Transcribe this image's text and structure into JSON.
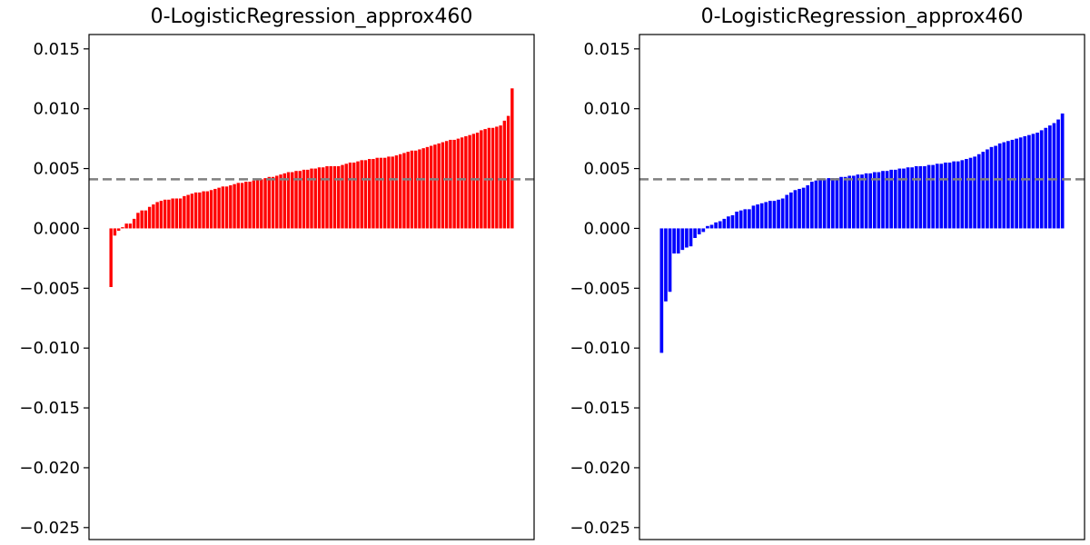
{
  "chart_data": [
    {
      "type": "bar",
      "title": "0-LogisticRegression_approx460",
      "color": "#ff0000",
      "ylim": [
        -0.026,
        0.0162
      ],
      "yticks": [
        0.015,
        0.01,
        0.005,
        0.0,
        -0.005,
        -0.01,
        -0.015,
        -0.02,
        -0.025
      ],
      "ytick_labels": [
        "0.015",
        "0.010",
        "0.005",
        "0.000",
        "−0.005",
        "−0.010",
        "−0.015",
        "−0.020",
        "−0.025"
      ],
      "reference_line": 0.0041,
      "values": [
        -0.0049,
        -0.0006,
        -0.0002,
        0.0001,
        0.0004,
        0.0004,
        0.0008,
        0.0013,
        0.0015,
        0.0015,
        0.0018,
        0.002,
        0.0022,
        0.0023,
        0.0024,
        0.0024,
        0.0025,
        0.0025,
        0.0025,
        0.0027,
        0.0028,
        0.0029,
        0.003,
        0.003,
        0.0031,
        0.0031,
        0.0032,
        0.0033,
        0.0034,
        0.0035,
        0.0035,
        0.0036,
        0.0037,
        0.0038,
        0.0038,
        0.0039,
        0.0039,
        0.004,
        0.0041,
        0.0041,
        0.0042,
        0.0043,
        0.0043,
        0.0044,
        0.0045,
        0.0046,
        0.0047,
        0.0047,
        0.0048,
        0.0048,
        0.0049,
        0.0049,
        0.005,
        0.005,
        0.0051,
        0.0051,
        0.0052,
        0.0052,
        0.0052,
        0.0052,
        0.0053,
        0.0054,
        0.0055,
        0.0055,
        0.0056,
        0.0057,
        0.0057,
        0.0058,
        0.0058,
        0.0059,
        0.0059,
        0.0059,
        0.006,
        0.006,
        0.0061,
        0.0062,
        0.0063,
        0.0064,
        0.0065,
        0.0065,
        0.0066,
        0.0067,
        0.0068,
        0.0069,
        0.007,
        0.0071,
        0.0072,
        0.0073,
        0.0074,
        0.0074,
        0.0075,
        0.0076,
        0.0077,
        0.0078,
        0.0079,
        0.008,
        0.0082,
        0.0083,
        0.0084,
        0.0084,
        0.0085,
        0.0086,
        0.009,
        0.0094,
        0.0117
      ]
    },
    {
      "type": "bar",
      "title": "0-LogisticRegression_approx460",
      "color": "#0000ff",
      "ylim": [
        -0.026,
        0.0162
      ],
      "yticks": [
        0.015,
        0.01,
        0.005,
        0.0,
        -0.005,
        -0.01,
        -0.015,
        -0.02,
        -0.025
      ],
      "ytick_labels": [
        "0.015",
        "0.010",
        "0.005",
        "0.000",
        "−0.005",
        "−0.010",
        "−0.015",
        "−0.020",
        "−0.025"
      ],
      "reference_line": 0.0041,
      "values": [
        -0.0104,
        -0.0061,
        -0.0053,
        -0.0021,
        -0.0021,
        -0.0018,
        -0.0016,
        -0.0015,
        -0.0008,
        -0.0005,
        -0.0003,
        0.0002,
        0.0003,
        0.0005,
        0.0006,
        0.0008,
        0.001,
        0.0011,
        0.0014,
        0.0015,
        0.0016,
        0.0016,
        0.0019,
        0.002,
        0.0021,
        0.0022,
        0.0023,
        0.0023,
        0.0024,
        0.0025,
        0.0028,
        0.003,
        0.0032,
        0.0033,
        0.0034,
        0.0036,
        0.0039,
        0.004,
        0.0041,
        0.0041,
        0.0042,
        0.0042,
        0.0042,
        0.0043,
        0.0043,
        0.0044,
        0.0044,
        0.0045,
        0.0045,
        0.0046,
        0.0046,
        0.0047,
        0.0047,
        0.0048,
        0.0048,
        0.0049,
        0.0049,
        0.005,
        0.005,
        0.0051,
        0.0051,
        0.0052,
        0.0052,
        0.0052,
        0.0053,
        0.0053,
        0.0054,
        0.0054,
        0.0055,
        0.0055,
        0.0056,
        0.0056,
        0.0057,
        0.0058,
        0.0059,
        0.006,
        0.0062,
        0.0064,
        0.0066,
        0.0068,
        0.0069,
        0.0071,
        0.0072,
        0.0073,
        0.0074,
        0.0075,
        0.0076,
        0.0077,
        0.0078,
        0.0079,
        0.008,
        0.0082,
        0.0084,
        0.0086,
        0.0088,
        0.0091,
        0.0096
      ]
    }
  ]
}
